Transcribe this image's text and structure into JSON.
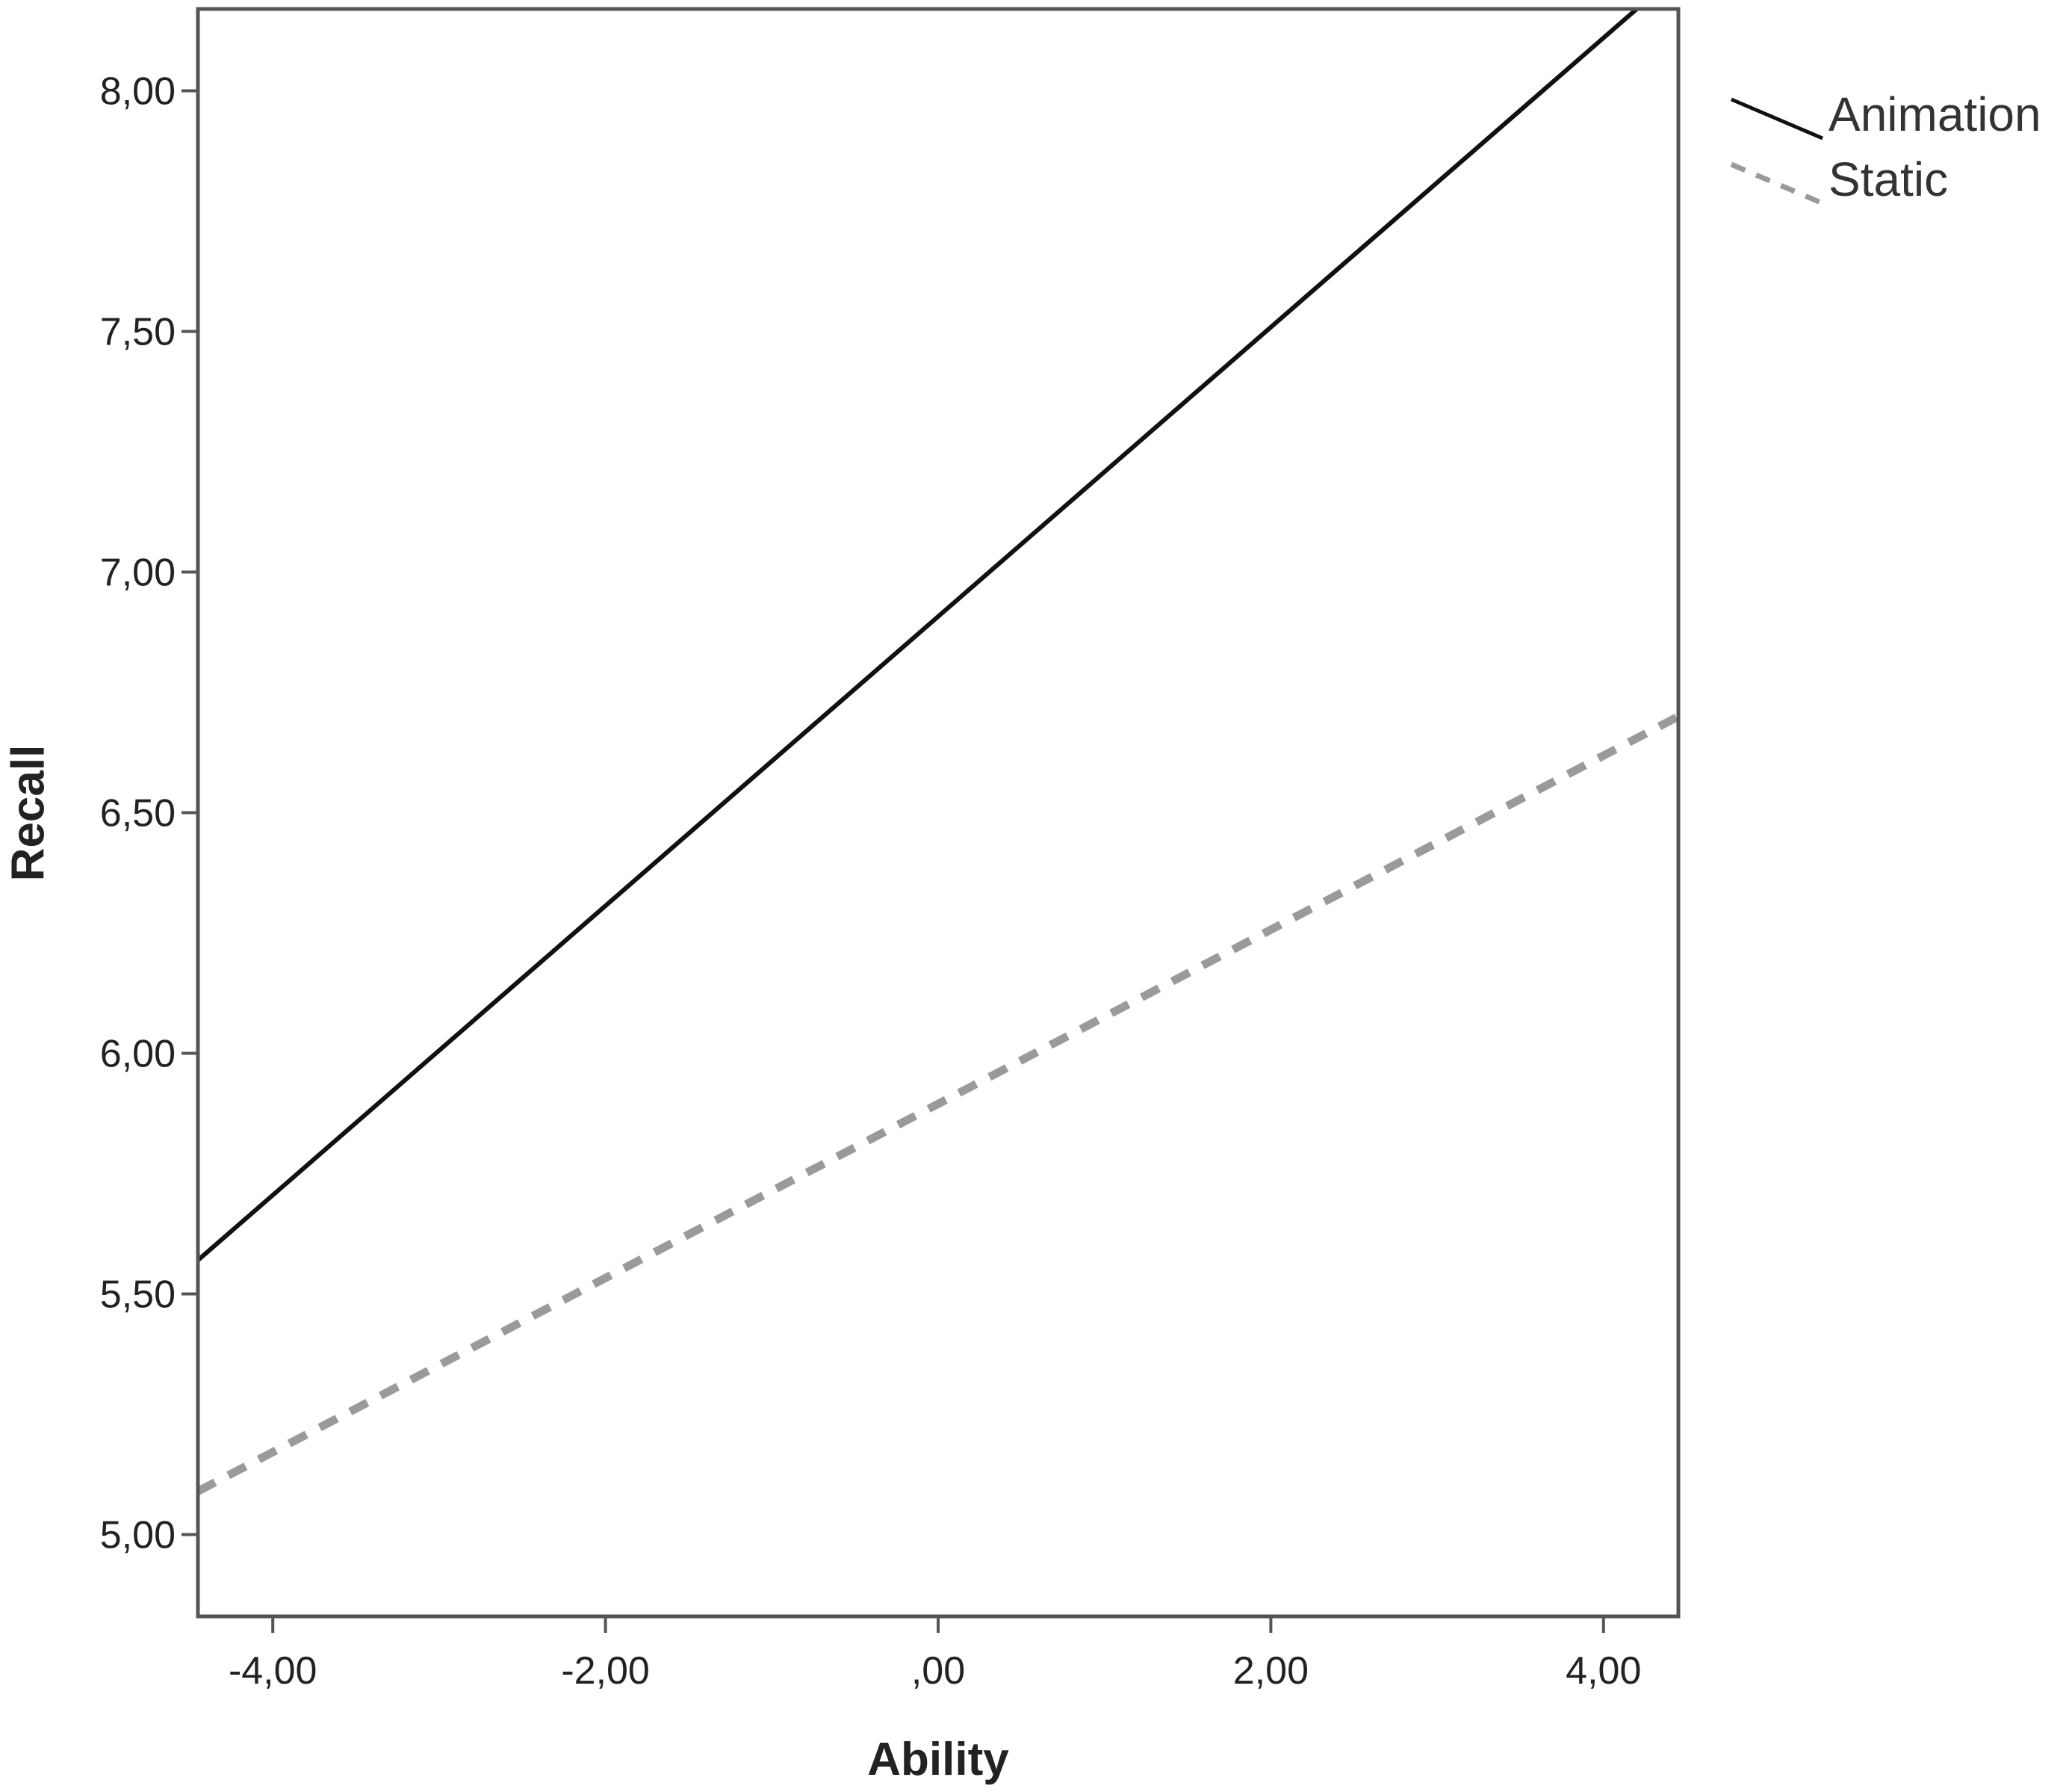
{
  "chart_data": {
    "type": "line",
    "xlabel": "Ability",
    "ylabel": "Recall",
    "xlim": [
      -4.45,
      4.45
    ],
    "ylim": [
      4.83,
      8.17
    ],
    "x_ticks": [
      -4,
      -2,
      0,
      2,
      4
    ],
    "x_tick_labels": [
      "-4,00",
      "-2,00",
      ",00",
      "2,00",
      "4,00"
    ],
    "y_ticks": [
      5,
      5.5,
      6,
      6.5,
      7,
      7.5,
      8
    ],
    "y_tick_labels": [
      "5,00",
      "5,50",
      "6,00",
      "6,50",
      "7,00",
      "7,50",
      "8,00"
    ],
    "grid": false,
    "legend_position": "outside-top-right",
    "series": [
      {
        "name": "Animation",
        "color": "#111111",
        "style": "solid",
        "x": [
          -4.45,
          4.2
        ],
        "y": [
          5.57,
          8.17
        ]
      },
      {
        "name": "Static",
        "color": "#9a9a9a",
        "style": "dashed",
        "x": [
          -4.45,
          4.45
        ],
        "y": [
          5.09,
          6.7
        ]
      }
    ]
  }
}
